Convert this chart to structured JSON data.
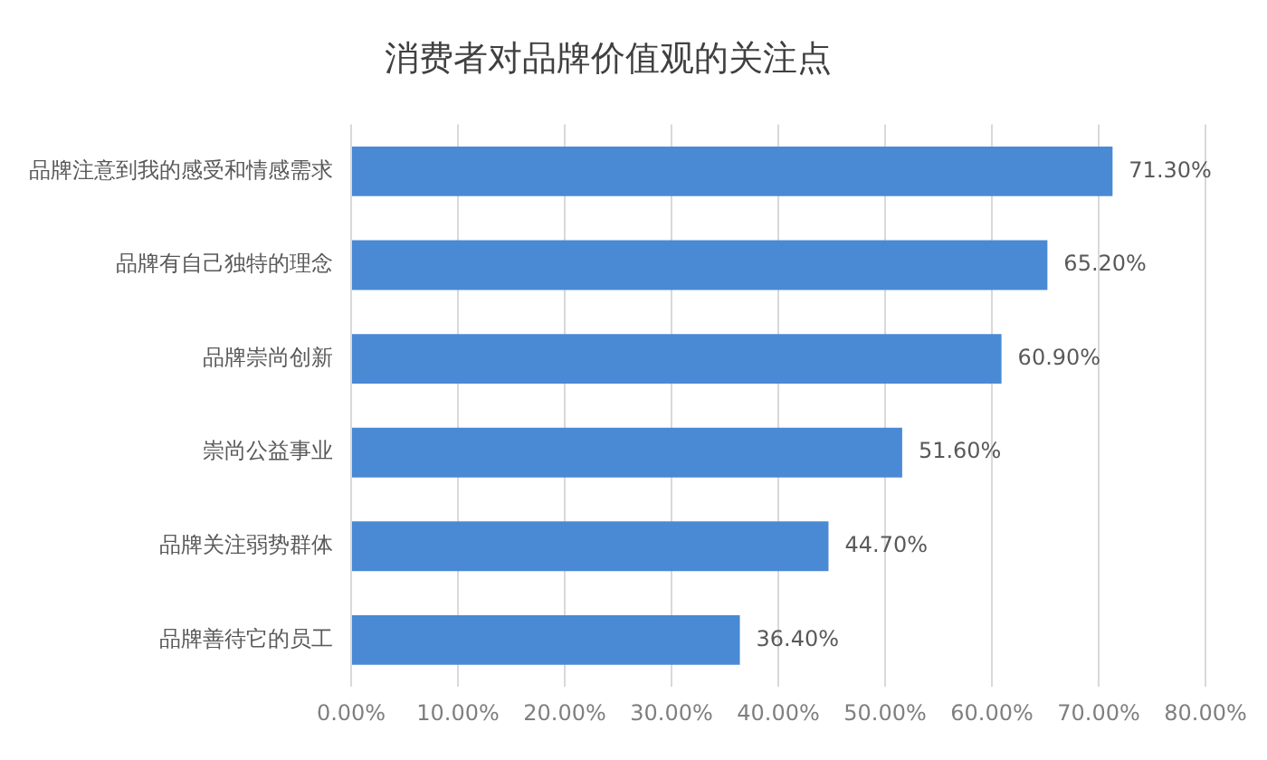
{
  "chart_data": {
    "type": "bar",
    "orientation": "horizontal",
    "title": "消费者对品牌价值观的关注点",
    "categories": [
      "品牌注意到我的感受和情感需求",
      "品牌有自己独特的理念",
      "品牌崇尚创新",
      "崇尚公益事业",
      "品牌关注弱势群体",
      "品牌善待它的员工"
    ],
    "values": [
      71.3,
      65.2,
      60.9,
      51.6,
      44.7,
      36.4
    ],
    "value_labels": [
      "71.30%",
      "65.20%",
      "60.90%",
      "51.60%",
      "44.70%",
      "36.40%"
    ],
    "color": "#4a89d4",
    "xlim": [
      0,
      80
    ],
    "xticks": [
      {
        "value": 0,
        "label": "0.00%"
      },
      {
        "value": 10,
        "label": "10.00%"
      },
      {
        "value": 20,
        "label": "20.00%"
      },
      {
        "value": 30,
        "label": "30.00%"
      },
      {
        "value": 40,
        "label": "40.00%"
      },
      {
        "value": 50,
        "label": "50.00%"
      },
      {
        "value": 60,
        "label": "60.00%"
      },
      {
        "value": 70,
        "label": "70.00%"
      },
      {
        "value": 80,
        "label": "80.00%"
      }
    ],
    "grid": "x",
    "legend": false
  }
}
